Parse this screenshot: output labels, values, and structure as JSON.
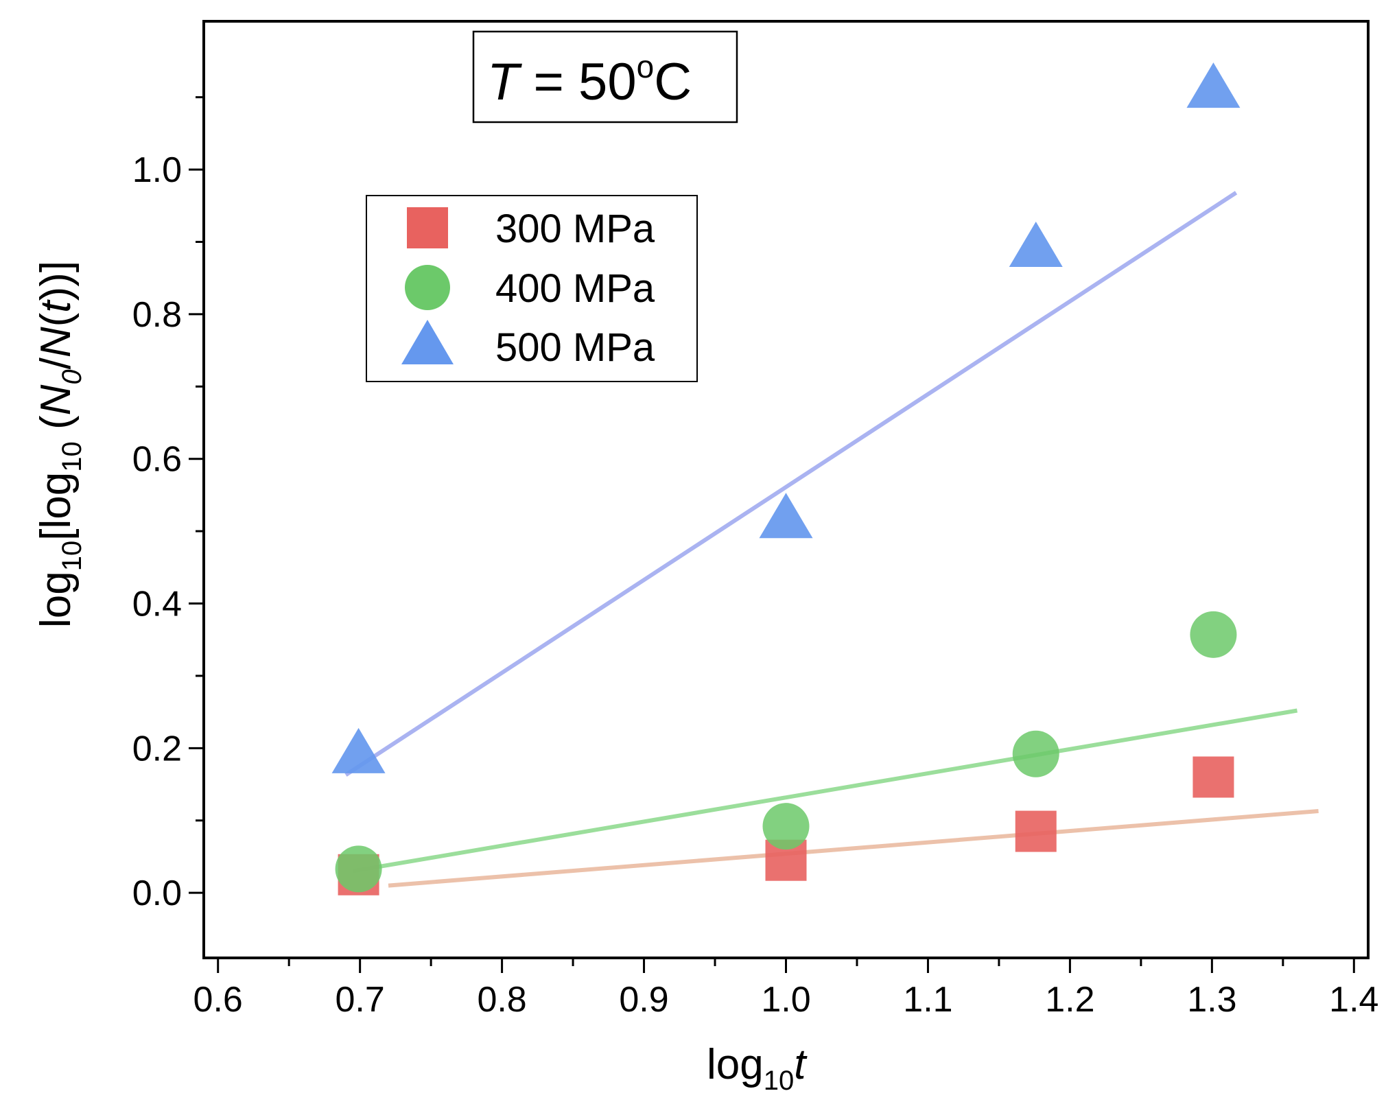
{
  "chart_data": {
    "type": "scatter",
    "xlabel": {
      "base": "log",
      "sub": "10",
      "var": "t"
    },
    "ylabel": {
      "prefix": "log",
      "sub1": "10",
      "mid": "[log",
      "sub2": "10",
      "open": " (",
      "n0": "N",
      "n0sub": "0",
      "slash": "/",
      "nt": "N",
      "t_open": "(",
      "t": "t",
      "close": "))]"
    },
    "annotation": {
      "var": "T",
      "eq": " = 50",
      "deg": "o",
      "unit": "C"
    },
    "xlim": [
      0.59,
      1.41
    ],
    "ylim": [
      -0.09,
      1.205
    ],
    "xticks": [
      "0.6",
      "0.7",
      "0.8",
      "0.9",
      "1.0",
      "1.1",
      "1.2",
      "1.3",
      "1.4"
    ],
    "yticks": [
      "0.0",
      "0.2",
      "0.4",
      "0.6",
      "0.8",
      "1.0"
    ],
    "legend_position": "upper-left",
    "series": [
      {
        "name": "300 MPa",
        "marker": "square",
        "color": "#e8625f",
        "fit_color": "#e9b69b",
        "x": [
          0.699,
          1.0,
          1.176,
          1.301
        ],
        "y": [
          0.025,
          0.045,
          0.085,
          0.16
        ],
        "fit": {
          "x": [
            0.72,
            1.375
          ],
          "y": [
            0.01,
            0.113
          ]
        }
      },
      {
        "name": "400 MPa",
        "marker": "circle",
        "color": "#6cc96a",
        "fit_color": "#8ad88a",
        "x": [
          0.699,
          1.0,
          1.176,
          1.301
        ],
        "y": [
          0.033,
          0.092,
          0.192,
          0.357
        ],
        "fit": {
          "x": [
            0.695,
            1.36
          ],
          "y": [
            0.03,
            0.252
          ]
        }
      },
      {
        "name": "500 MPa",
        "marker": "triangle",
        "color": "#6598ee",
        "fit_color": "#9ba6ee",
        "x": [
          0.699,
          1.0,
          1.176,
          1.301
        ],
        "y": [
          0.19,
          0.515,
          0.89,
          1.11
        ],
        "fit": {
          "x": [
            0.69,
            1.317
          ],
          "y": [
            0.163,
            0.968
          ]
        }
      }
    ]
  }
}
